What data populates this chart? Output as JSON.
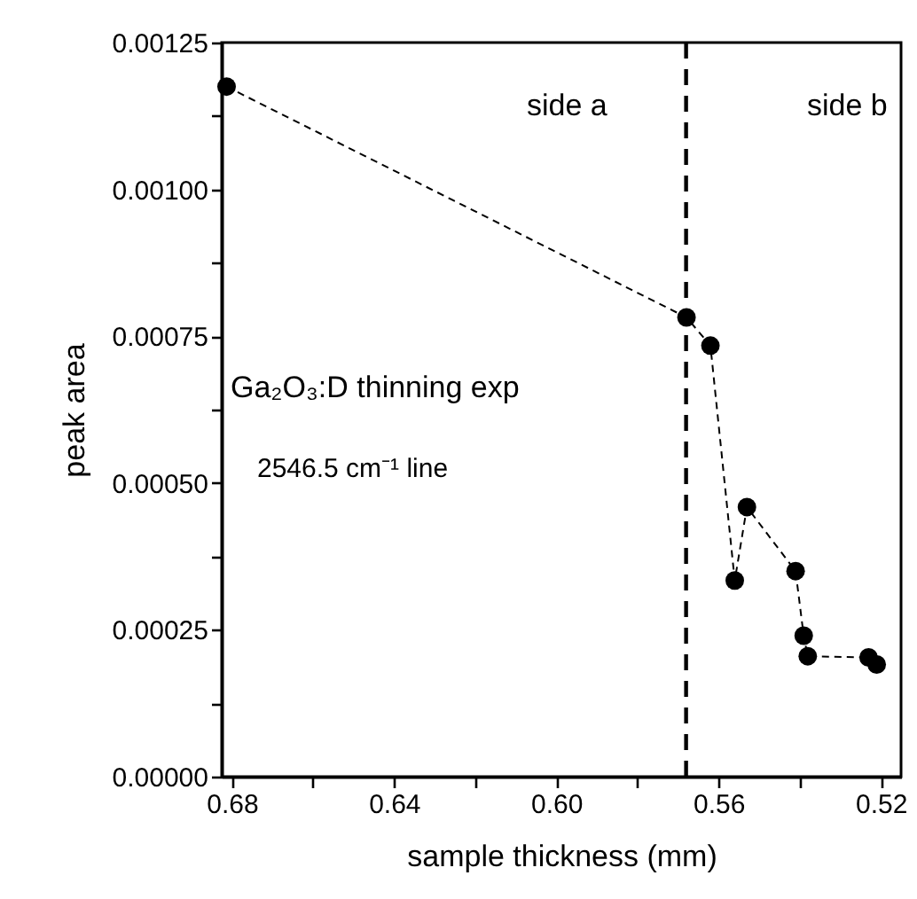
{
  "chart_data": {
    "type": "line",
    "xlabel": "sample thickness (mm)",
    "ylabel": "peak area",
    "x": [
      0.6813,
      0.5679,
      0.562,
      0.556,
      0.553,
      0.541,
      0.539,
      0.538,
      0.523,
      0.521
    ],
    "series": [
      {
        "color": "#000000",
        "values": [
          0.001175,
          0.000782,
          0.000734,
          0.000334,
          0.000459,
          0.00035,
          0.00024,
          0.000205,
          0.000203,
          0.000191
        ]
      }
    ],
    "xlim": [
      0.6825,
      0.515
    ],
    "xticks": [
      0.68,
      {
        "value": 0.66,
        "label": null
      },
      0.64,
      {
        "value": 0.62,
        "label": null
      },
      {
        "value": 0.6,
        "label": "0.60"
      },
      {
        "value": 0.58,
        "label": null
      },
      0.56,
      {
        "value": 0.54,
        "label": null
      },
      0.52
    ],
    "ylim": [
      0,
      0.00125
    ],
    "yticks": [
      {
        "value": 0,
        "label": "0.00000"
      },
      {
        "value": 0.000125,
        "label": null
      },
      {
        "value": 0.00025,
        "label": "0.00025"
      },
      {
        "value": 0.000375,
        "label": null
      },
      {
        "value": 0.0005,
        "label": "0.00050"
      },
      {
        "value": 0.000625,
        "label": null
      },
      {
        "value": 0.00075,
        "label": "0.00075"
      },
      {
        "value": 0.000875,
        "label": null
      },
      {
        "value": 0.001,
        "label": "0.00100"
      },
      {
        "value": 0.001125,
        "label": null
      },
      {
        "value": 0.00125,
        "label": "0.00125"
      }
    ],
    "ref_lines": [
      {
        "axis": "x",
        "value": 0.568,
        "line_style": "dashed",
        "color": "#000000"
      }
    ],
    "annotations": [
      "side a",
      "side b",
      "Ga₂O₃:D thinning exp",
      "2546.5 cm⁻¹ line"
    ],
    "marker": "circle",
    "line_style": "dashed",
    "grid": false
  }
}
